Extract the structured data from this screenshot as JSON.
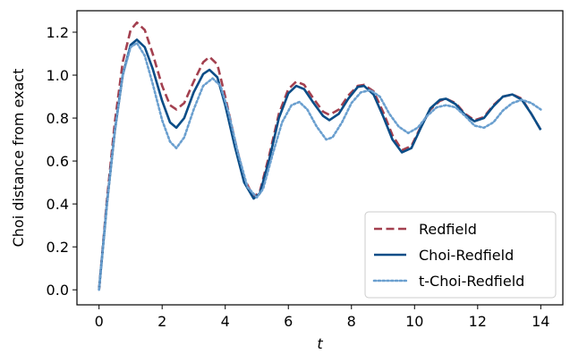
{
  "chart_data": {
    "type": "line",
    "title": "",
    "xlabel": "t",
    "ylabel": "Choi distance from exact",
    "xlim": [
      -0.7,
      14.7
    ],
    "ylim": [
      -0.07,
      1.3
    ],
    "x_ticks": [
      0,
      2,
      4,
      6,
      8,
      10,
      12,
      14
    ],
    "y_ticks": [
      0.0,
      0.2,
      0.4,
      0.6,
      0.8,
      1.0,
      1.2
    ],
    "x_tick_labels": [
      "0",
      "2",
      "4",
      "6",
      "8",
      "10",
      "12",
      "14"
    ],
    "y_tick_labels": [
      "0.0",
      "0.2",
      "0.4",
      "0.6",
      "0.8",
      "1.0",
      "1.2"
    ],
    "grid": false,
    "legend_position": "bottom-right",
    "series": [
      {
        "name": "Redfield",
        "color": "#a3404f",
        "style": "dashed",
        "points": [
          [
            0,
            0.0
          ],
          [
            0.25,
            0.42
          ],
          [
            0.5,
            0.78
          ],
          [
            0.75,
            1.06
          ],
          [
            1.0,
            1.21
          ],
          [
            1.2,
            1.245
          ],
          [
            1.45,
            1.21
          ],
          [
            1.7,
            1.1
          ],
          [
            2.0,
            0.95
          ],
          [
            2.25,
            0.86
          ],
          [
            2.45,
            0.84
          ],
          [
            2.7,
            0.87
          ],
          [
            3.0,
            0.97
          ],
          [
            3.3,
            1.06
          ],
          [
            3.5,
            1.085
          ],
          [
            3.75,
            1.05
          ],
          [
            4.0,
            0.9
          ],
          [
            4.3,
            0.7
          ],
          [
            4.6,
            0.52
          ],
          [
            4.9,
            0.43
          ],
          [
            5.1,
            0.46
          ],
          [
            5.4,
            0.63
          ],
          [
            5.7,
            0.82
          ],
          [
            6.0,
            0.935
          ],
          [
            6.25,
            0.97
          ],
          [
            6.5,
            0.955
          ],
          [
            6.8,
            0.89
          ],
          [
            7.1,
            0.83
          ],
          [
            7.3,
            0.815
          ],
          [
            7.6,
            0.84
          ],
          [
            7.9,
            0.905
          ],
          [
            8.2,
            0.95
          ],
          [
            8.4,
            0.955
          ],
          [
            8.7,
            0.925
          ],
          [
            9.0,
            0.83
          ],
          [
            9.3,
            0.72
          ],
          [
            9.6,
            0.65
          ],
          [
            9.9,
            0.67
          ],
          [
            10.2,
            0.76
          ],
          [
            10.5,
            0.84
          ],
          [
            10.8,
            0.88
          ],
          [
            11.0,
            0.89
          ],
          [
            11.3,
            0.87
          ],
          [
            11.6,
            0.82
          ],
          [
            11.9,
            0.79
          ],
          [
            12.2,
            0.805
          ],
          [
            12.5,
            0.86
          ],
          [
            12.8,
            0.9
          ],
          [
            13.1,
            0.91
          ],
          [
            13.4,
            0.89
          ],
          [
            13.7,
            0.82
          ],
          [
            14.0,
            0.745
          ]
        ]
      },
      {
        "name": "Choi-Redfield",
        "color": "#0b4d87",
        "style": "solid",
        "points": [
          [
            0,
            0.0
          ],
          [
            0.25,
            0.4
          ],
          [
            0.5,
            0.74
          ],
          [
            0.75,
            1.0
          ],
          [
            1.0,
            1.14
          ],
          [
            1.2,
            1.165
          ],
          [
            1.45,
            1.13
          ],
          [
            1.7,
            1.03
          ],
          [
            2.0,
            0.88
          ],
          [
            2.25,
            0.78
          ],
          [
            2.45,
            0.755
          ],
          [
            2.7,
            0.8
          ],
          [
            3.0,
            0.92
          ],
          [
            3.3,
            1.005
          ],
          [
            3.5,
            1.025
          ],
          [
            3.75,
            0.99
          ],
          [
            4.0,
            0.86
          ],
          [
            4.3,
            0.67
          ],
          [
            4.6,
            0.5
          ],
          [
            4.9,
            0.425
          ],
          [
            5.1,
            0.45
          ],
          [
            5.4,
            0.61
          ],
          [
            5.7,
            0.8
          ],
          [
            6.0,
            0.915
          ],
          [
            6.25,
            0.95
          ],
          [
            6.5,
            0.935
          ],
          [
            6.8,
            0.87
          ],
          [
            7.1,
            0.81
          ],
          [
            7.3,
            0.79
          ],
          [
            7.6,
            0.82
          ],
          [
            7.9,
            0.89
          ],
          [
            8.2,
            0.945
          ],
          [
            8.4,
            0.95
          ],
          [
            8.7,
            0.91
          ],
          [
            9.0,
            0.81
          ],
          [
            9.3,
            0.7
          ],
          [
            9.6,
            0.64
          ],
          [
            9.9,
            0.66
          ],
          [
            10.2,
            0.755
          ],
          [
            10.5,
            0.845
          ],
          [
            10.8,
            0.885
          ],
          [
            11.0,
            0.89
          ],
          [
            11.3,
            0.865
          ],
          [
            11.6,
            0.815
          ],
          [
            11.9,
            0.785
          ],
          [
            12.2,
            0.8
          ],
          [
            12.5,
            0.855
          ],
          [
            12.8,
            0.9
          ],
          [
            13.1,
            0.91
          ],
          [
            13.4,
            0.885
          ],
          [
            13.7,
            0.82
          ],
          [
            14.0,
            0.745
          ]
        ]
      },
      {
        "name": "t-Choi-Redfield",
        "color": "#6a9fcf",
        "style": "dotted",
        "points": [
          [
            0,
            0.0
          ],
          [
            0.25,
            0.4
          ],
          [
            0.5,
            0.74
          ],
          [
            0.75,
            1.0
          ],
          [
            1.0,
            1.13
          ],
          [
            1.2,
            1.15
          ],
          [
            1.45,
            1.09
          ],
          [
            1.7,
            0.96
          ],
          [
            2.0,
            0.79
          ],
          [
            2.25,
            0.69
          ],
          [
            2.45,
            0.66
          ],
          [
            2.7,
            0.71
          ],
          [
            3.0,
            0.84
          ],
          [
            3.3,
            0.95
          ],
          [
            3.6,
            0.985
          ],
          [
            3.85,
            0.95
          ],
          [
            4.1,
            0.83
          ],
          [
            4.4,
            0.64
          ],
          [
            4.7,
            0.48
          ],
          [
            5.0,
            0.43
          ],
          [
            5.2,
            0.47
          ],
          [
            5.5,
            0.63
          ],
          [
            5.8,
            0.78
          ],
          [
            6.1,
            0.86
          ],
          [
            6.35,
            0.875
          ],
          [
            6.6,
            0.84
          ],
          [
            6.9,
            0.76
          ],
          [
            7.2,
            0.7
          ],
          [
            7.4,
            0.71
          ],
          [
            7.7,
            0.78
          ],
          [
            8.0,
            0.87
          ],
          [
            8.3,
            0.92
          ],
          [
            8.6,
            0.93
          ],
          [
            8.9,
            0.9
          ],
          [
            9.2,
            0.82
          ],
          [
            9.5,
            0.76
          ],
          [
            9.8,
            0.73
          ],
          [
            10.1,
            0.755
          ],
          [
            10.4,
            0.81
          ],
          [
            10.7,
            0.85
          ],
          [
            11.0,
            0.86
          ],
          [
            11.3,
            0.85
          ],
          [
            11.6,
            0.81
          ],
          [
            11.9,
            0.765
          ],
          [
            12.2,
            0.755
          ],
          [
            12.5,
            0.78
          ],
          [
            12.8,
            0.835
          ],
          [
            13.1,
            0.87
          ],
          [
            13.4,
            0.885
          ],
          [
            13.7,
            0.87
          ],
          [
            14.0,
            0.84
          ]
        ]
      }
    ]
  }
}
